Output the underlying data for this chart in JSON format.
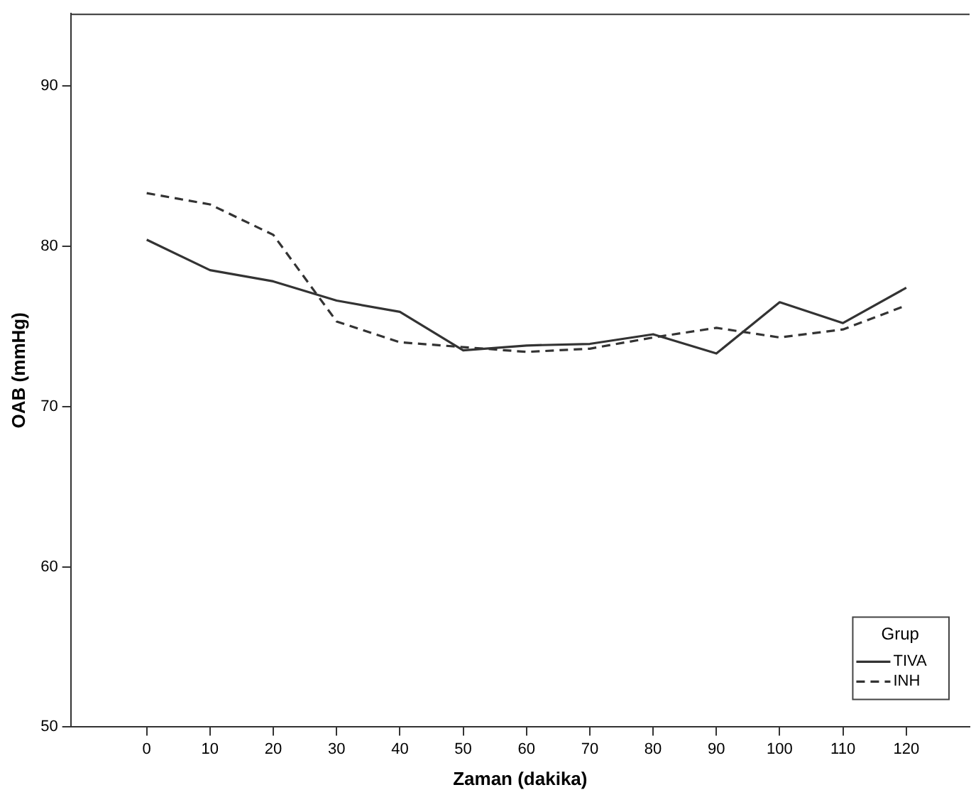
{
  "chart_data": {
    "type": "line",
    "xlabel": "Zaman (dakika)",
    "ylabel": "OAB (mmHg)",
    "legend_title": "Grup",
    "x": [
      0,
      10,
      20,
      30,
      40,
      50,
      60,
      70,
      80,
      90,
      100,
      110,
      120
    ],
    "series": [
      {
        "name": "TIVA",
        "color": "#333333",
        "line_style": "solid",
        "values": [
          80.4,
          78.5,
          77.8,
          76.6,
          75.9,
          73.5,
          73.8,
          73.9,
          74.5,
          73.3,
          76.5,
          75.2,
          77.4
        ]
      },
      {
        "name": "INH",
        "color": "#333333",
        "line_style": "dashed",
        "values": [
          83.3,
          82.6,
          80.7,
          75.3,
          74.0,
          73.7,
          73.4,
          73.6,
          74.3,
          74.9,
          74.3,
          74.8,
          76.3
        ]
      }
    ],
    "xlim": [
      -12,
      130
    ],
    "xticks": [
      0,
      10,
      20,
      30,
      40,
      50,
      60,
      70,
      80,
      90,
      100,
      110,
      120
    ],
    "ylim": [
      50,
      94.5
    ],
    "yticks": [
      50,
      60,
      70,
      80,
      90
    ],
    "grid": false,
    "legend": "bottom right",
    "marker": "none"
  }
}
